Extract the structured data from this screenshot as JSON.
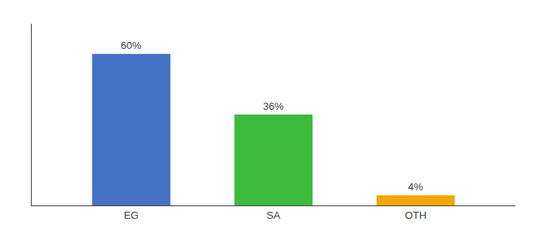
{
  "chart_data": {
    "type": "bar",
    "categories": [
      "EG",
      "SA",
      "OTH"
    ],
    "values": [
      60,
      36,
      4
    ],
    "value_labels": [
      "60%",
      "36%",
      "4%"
    ],
    "colors": [
      "#4472c4",
      "#3dbb3d",
      "#f4a700"
    ],
    "ylim": [
      0,
      72
    ],
    "grid": false,
    "data_labels": true,
    "tick_labels": "x"
  }
}
